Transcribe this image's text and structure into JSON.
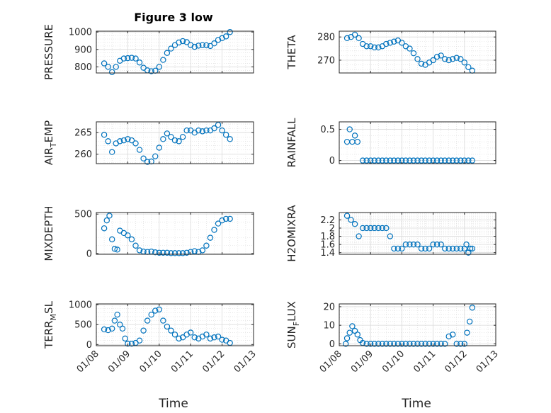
{
  "figure": {
    "title": "Figure 3 low",
    "x_label": "Time",
    "date_ticks": [
      "01/08",
      "01/09",
      "01/10",
      "01/11",
      "01/12",
      "01/13"
    ],
    "series_color": "#0072BD",
    "axis_color": "#262626",
    "grid_color": "#d9d9d9"
  },
  "chart_data": [
    {
      "type": "scatter",
      "ylabel": "PRESSURE",
      "xlim": [
        "2020-01-08",
        "2020-01-13"
      ],
      "ylim": [
        765,
        1005
      ],
      "yticks": [
        800,
        900,
        1000
      ],
      "ytick_labels": [
        "800",
        "900",
        "1000"
      ],
      "xtick_labels": false,
      "x": [
        "2020-01-08 06:00",
        "2020-01-08 09:00",
        "2020-01-08 12:00",
        "2020-01-08 15:00",
        "2020-01-08 18:00",
        "2020-01-08 21:00",
        "2020-01-09 00:00",
        "2020-01-09 03:00",
        "2020-01-09 06:00",
        "2020-01-09 09:00",
        "2020-01-09 12:00",
        "2020-01-09 15:00",
        "2020-01-09 18:00",
        "2020-01-09 21:00",
        "2020-01-10 00:00",
        "2020-01-10 03:00",
        "2020-01-10 06:00",
        "2020-01-10 09:00",
        "2020-01-10 12:00",
        "2020-01-10 15:00",
        "2020-01-10 18:00",
        "2020-01-10 21:00",
        "2020-01-11 00:00",
        "2020-01-11 03:00",
        "2020-01-11 06:00",
        "2020-01-11 09:00",
        "2020-01-11 12:00",
        "2020-01-11 15:00",
        "2020-01-11 18:00",
        "2020-01-11 21:00",
        "2020-01-12 00:00",
        "2020-01-12 03:00",
        "2020-01-12 06:00"
      ],
      "y": [
        820,
        800,
        770,
        800,
        835,
        848,
        850,
        852,
        848,
        825,
        795,
        780,
        775,
        778,
        800,
        840,
        880,
        905,
        925,
        940,
        948,
        942,
        925,
        915,
        922,
        925,
        924,
        920,
        935,
        955,
        965,
        975,
        1000
      ]
    },
    {
      "type": "scatter",
      "ylabel": "THETA",
      "xlim": [
        "2020-01-08",
        "2020-01-13"
      ],
      "ylim": [
        264.5,
        282.5
      ],
      "yticks": [
        270,
        280
      ],
      "ytick_labels": [
        "270",
        "280"
      ],
      "xtick_labels": false,
      "x": [
        "2020-01-08 06:00",
        "2020-01-08 09:00",
        "2020-01-08 12:00",
        "2020-01-08 15:00",
        "2020-01-08 18:00",
        "2020-01-08 21:00",
        "2020-01-09 00:00",
        "2020-01-09 03:00",
        "2020-01-09 06:00",
        "2020-01-09 09:00",
        "2020-01-09 12:00",
        "2020-01-09 15:00",
        "2020-01-09 18:00",
        "2020-01-09 21:00",
        "2020-01-10 00:00",
        "2020-01-10 03:00",
        "2020-01-10 06:00",
        "2020-01-10 09:00",
        "2020-01-10 12:00",
        "2020-01-10 15:00",
        "2020-01-10 18:00",
        "2020-01-10 21:00",
        "2020-01-11 00:00",
        "2020-01-11 03:00",
        "2020-01-11 06:00",
        "2020-01-11 09:00",
        "2020-01-11 12:00",
        "2020-01-11 15:00",
        "2020-01-11 18:00",
        "2020-01-11 21:00",
        "2020-01-12 00:00",
        "2020-01-12 03:00",
        "2020-01-12 06:00"
      ],
      "y": [
        279.5,
        280,
        281,
        279.5,
        277,
        276,
        276,
        275.5,
        275.5,
        276,
        277,
        277.5,
        278,
        278.5,
        277.5,
        276,
        275,
        273,
        270.5,
        268.5,
        268,
        269,
        270,
        271.5,
        272,
        270.5,
        270,
        270.5,
        271,
        270.5,
        269,
        267,
        265.5
      ]
    },
    {
      "type": "scatter",
      "ylabel": "AIR_TEMP",
      "xlim": [
        "2020-01-08",
        "2020-01-13"
      ],
      "ylim": [
        257.8,
        267.5
      ],
      "yticks": [
        260,
        265
      ],
      "ytick_labels": [
        "260",
        "265"
      ],
      "xtick_labels": false,
      "x": [
        "2020-01-08 06:00",
        "2020-01-08 09:00",
        "2020-01-08 12:00",
        "2020-01-08 15:00",
        "2020-01-08 18:00",
        "2020-01-08 21:00",
        "2020-01-09 00:00",
        "2020-01-09 03:00",
        "2020-01-09 06:00",
        "2020-01-09 09:00",
        "2020-01-09 12:00",
        "2020-01-09 15:00",
        "2020-01-09 18:00",
        "2020-01-09 21:00",
        "2020-01-10 00:00",
        "2020-01-10 03:00",
        "2020-01-10 06:00",
        "2020-01-10 09:00",
        "2020-01-10 12:00",
        "2020-01-10 15:00",
        "2020-01-10 18:00",
        "2020-01-10 21:00",
        "2020-01-11 00:00",
        "2020-01-11 03:00",
        "2020-01-11 06:00",
        "2020-01-11 09:00",
        "2020-01-11 12:00",
        "2020-01-11 15:00",
        "2020-01-11 18:00",
        "2020-01-11 21:00",
        "2020-01-12 00:00",
        "2020-01-12 03:00",
        "2020-01-12 06:00"
      ],
      "y": [
        264.5,
        263,
        260.5,
        262.5,
        263,
        263.2,
        263.5,
        263.2,
        262.5,
        261,
        259,
        258.2,
        258.3,
        259.5,
        261.5,
        263.5,
        264.8,
        264,
        263.2,
        263,
        264,
        265.5,
        265.5,
        265,
        265.5,
        265.3,
        265.5,
        265.5,
        266,
        266.8,
        265.5,
        264.5,
        263.5
      ]
    },
    {
      "type": "scatter",
      "ylabel": "RAINFALL",
      "xlim": [
        "2020-01-08",
        "2020-01-13"
      ],
      "ylim": [
        -0.05,
        0.62
      ],
      "yticks": [
        0,
        0.5
      ],
      "ytick_labels": [
        "0",
        "0.5"
      ],
      "xtick_labels": false,
      "x": [
        "2020-01-08 06:00",
        "2020-01-08 08:00",
        "2020-01-08 10:00",
        "2020-01-08 12:00",
        "2020-01-08 14:00",
        "2020-01-08 18:00",
        "2020-01-08 21:00",
        "2020-01-09 00:00",
        "2020-01-09 03:00",
        "2020-01-09 06:00",
        "2020-01-09 09:00",
        "2020-01-09 12:00",
        "2020-01-09 15:00",
        "2020-01-09 18:00",
        "2020-01-09 21:00",
        "2020-01-10 00:00",
        "2020-01-10 03:00",
        "2020-01-10 06:00",
        "2020-01-10 09:00",
        "2020-01-10 12:00",
        "2020-01-10 15:00",
        "2020-01-10 18:00",
        "2020-01-10 21:00",
        "2020-01-11 00:00",
        "2020-01-11 03:00",
        "2020-01-11 06:00",
        "2020-01-11 09:00",
        "2020-01-11 12:00",
        "2020-01-11 15:00",
        "2020-01-11 18:00",
        "2020-01-11 21:00",
        "2020-01-12 00:00",
        "2020-01-12 03:00",
        "2020-01-12 06:00"
      ],
      "y": [
        0.3,
        0.5,
        0.3,
        0.4,
        0.3,
        0,
        0,
        0,
        0,
        0,
        0,
        0,
        0,
        0,
        0,
        0,
        0,
        0,
        0,
        0,
        0,
        0,
        0,
        0,
        0,
        0,
        0,
        0,
        0,
        0,
        0,
        0,
        0,
        0
      ]
    },
    {
      "type": "scatter",
      "ylabel": "MIXDEPTH",
      "xlim": [
        "2020-01-08",
        "2020-01-13"
      ],
      "ylim": [
        -10,
        520
      ],
      "yticks": [
        0,
        500
      ],
      "ytick_labels": [
        "0",
        "500"
      ],
      "xtick_labels": false,
      "x": [
        "2020-01-08 06:00",
        "2020-01-08 08:00",
        "2020-01-08 10:00",
        "2020-01-08 12:00",
        "2020-01-08 14:00",
        "2020-01-08 16:00",
        "2020-01-08 18:00",
        "2020-01-08 21:00",
        "2020-01-09 00:00",
        "2020-01-09 03:00",
        "2020-01-09 06:00",
        "2020-01-09 09:00",
        "2020-01-09 12:00",
        "2020-01-09 15:00",
        "2020-01-09 18:00",
        "2020-01-09 21:00",
        "2020-01-10 00:00",
        "2020-01-10 03:00",
        "2020-01-10 06:00",
        "2020-01-10 09:00",
        "2020-01-10 12:00",
        "2020-01-10 15:00",
        "2020-01-10 18:00",
        "2020-01-10 21:00",
        "2020-01-11 00:00",
        "2020-01-11 03:00",
        "2020-01-11 06:00",
        "2020-01-11 09:00",
        "2020-01-11 12:00",
        "2020-01-11 15:00",
        "2020-01-11 18:00",
        "2020-01-11 21:00",
        "2020-01-12 00:00",
        "2020-01-12 03:00",
        "2020-01-12 06:00"
      ],
      "y": [
        320,
        420,
        480,
        180,
        60,
        50,
        290,
        260,
        230,
        180,
        100,
        40,
        25,
        20,
        25,
        15,
        10,
        10,
        10,
        5,
        5,
        5,
        5,
        10,
        20,
        30,
        20,
        40,
        100,
        200,
        300,
        380,
        420,
        440,
        440
      ]
    },
    {
      "type": "scatter",
      "ylabel": "H2OMIXRA",
      "xlim": [
        "2020-01-08",
        "2020-01-13"
      ],
      "ylim": [
        1.36,
        2.38
      ],
      "yticks": [
        1.4,
        1.6,
        1.8,
        2,
        2.2
      ],
      "ytick_labels": [
        "1.4",
        "1.6",
        "1.8",
        "2",
        "2.2"
      ],
      "xtick_labels": false,
      "x": [
        "2020-01-08 06:00",
        "2020-01-08 09:00",
        "2020-01-08 12:00",
        "2020-01-08 15:00",
        "2020-01-08 18:00",
        "2020-01-08 21:00",
        "2020-01-09 00:00",
        "2020-01-09 03:00",
        "2020-01-09 06:00",
        "2020-01-09 09:00",
        "2020-01-09 12:00",
        "2020-01-09 15:00",
        "2020-01-09 18:00",
        "2020-01-09 21:00",
        "2020-01-10 00:00",
        "2020-01-10 03:00",
        "2020-01-10 06:00",
        "2020-01-10 09:00",
        "2020-01-10 12:00",
        "2020-01-10 15:00",
        "2020-01-10 18:00",
        "2020-01-10 21:00",
        "2020-01-11 00:00",
        "2020-01-11 03:00",
        "2020-01-11 06:00",
        "2020-01-11 09:00",
        "2020-01-11 12:00",
        "2020-01-11 15:00",
        "2020-01-11 18:00",
        "2020-01-11 21:00",
        "2020-01-12 00:00",
        "2020-01-12 01:30",
        "2020-01-12 03:00",
        "2020-01-12 04:30",
        "2020-01-12 06:00"
      ],
      "y": [
        2.3,
        2.2,
        2.1,
        1.8,
        2.0,
        2.0,
        2.0,
        2.0,
        2.0,
        2.0,
        2.0,
        1.8,
        1.5,
        1.5,
        1.5,
        1.6,
        1.6,
        1.6,
        1.6,
        1.5,
        1.5,
        1.5,
        1.6,
        1.6,
        1.6,
        1.5,
        1.5,
        1.5,
        1.5,
        1.5,
        1.5,
        1.6,
        1.4,
        1.5,
        1.5
      ]
    },
    {
      "type": "scatter",
      "ylabel": "TERR_MSL",
      "xlim": [
        "2020-01-08",
        "2020-01-13"
      ],
      "ylim": [
        -30,
        1020
      ],
      "yticks": [
        0,
        500,
        1000
      ],
      "ytick_labels": [
        "0",
        "500",
        "1000"
      ],
      "xtick_labels": true,
      "x": [
        "2020-01-08 06:00",
        "2020-01-08 09:00",
        "2020-01-08 12:00",
        "2020-01-08 14:00",
        "2020-01-08 16:00",
        "2020-01-08 18:00",
        "2020-01-08 20:00",
        "2020-01-08 22:00",
        "2020-01-09 00:00",
        "2020-01-09 03:00",
        "2020-01-09 06:00",
        "2020-01-09 09:00",
        "2020-01-09 12:00",
        "2020-01-09 15:00",
        "2020-01-09 18:00",
        "2020-01-09 21:00",
        "2020-01-10 00:00",
        "2020-01-10 03:00",
        "2020-01-10 06:00",
        "2020-01-10 09:00",
        "2020-01-10 12:00",
        "2020-01-10 15:00",
        "2020-01-10 18:00",
        "2020-01-10 21:00",
        "2020-01-11 00:00",
        "2020-01-11 03:00",
        "2020-01-11 06:00",
        "2020-01-11 09:00",
        "2020-01-11 12:00",
        "2020-01-11 15:00",
        "2020-01-11 18:00",
        "2020-01-11 21:00",
        "2020-01-12 00:00",
        "2020-01-12 03:00",
        "2020-01-12 06:00"
      ],
      "y": [
        380,
        360,
        400,
        600,
        750,
        500,
        400,
        150,
        20,
        20,
        40,
        100,
        350,
        600,
        750,
        850,
        880,
        600,
        450,
        350,
        250,
        150,
        180,
        250,
        300,
        180,
        150,
        200,
        250,
        150,
        180,
        200,
        120,
        100,
        40
      ]
    },
    {
      "type": "scatter",
      "ylabel": "SUN_FLUX",
      "xlim": [
        "2020-01-08",
        "2020-01-13"
      ],
      "ylim": [
        -1,
        21.5
      ],
      "yticks": [
        0,
        10,
        20
      ],
      "ytick_labels": [
        "0",
        "10",
        "20"
      ],
      "xtick_labels": true,
      "x": [
        "2020-01-08 05:00",
        "2020-01-08 06:00",
        "2020-01-08 08:00",
        "2020-01-08 10:00",
        "2020-01-08 12:00",
        "2020-01-08 14:00",
        "2020-01-08 16:00",
        "2020-01-08 18:00",
        "2020-01-08 21:00",
        "2020-01-09 00:00",
        "2020-01-09 03:00",
        "2020-01-09 06:00",
        "2020-01-09 09:00",
        "2020-01-09 12:00",
        "2020-01-09 15:00",
        "2020-01-09 18:00",
        "2020-01-09 21:00",
        "2020-01-10 00:00",
        "2020-01-10 03:00",
        "2020-01-10 06:00",
        "2020-01-10 09:00",
        "2020-01-10 12:00",
        "2020-01-10 15:00",
        "2020-01-10 18:00",
        "2020-01-10 21:00",
        "2020-01-11 00:00",
        "2020-01-11 03:00",
        "2020-01-11 06:00",
        "2020-01-11 09:00",
        "2020-01-11 12:00",
        "2020-01-11 15:00",
        "2020-01-11 18:00",
        "2020-01-11 21:00",
        "2020-01-12 00:00",
        "2020-01-12 02:00",
        "2020-01-12 04:00",
        "2020-01-12 06:00"
      ],
      "y": [
        0,
        3,
        6,
        9.5,
        7,
        5,
        2,
        0.5,
        0,
        0,
        0,
        0,
        0,
        0,
        0,
        0,
        0,
        0,
        0,
        0,
        0,
        0,
        0,
        0,
        0,
        0,
        0,
        0,
        0,
        4,
        5,
        0,
        0,
        0,
        6,
        12,
        19.5
      ]
    }
  ]
}
